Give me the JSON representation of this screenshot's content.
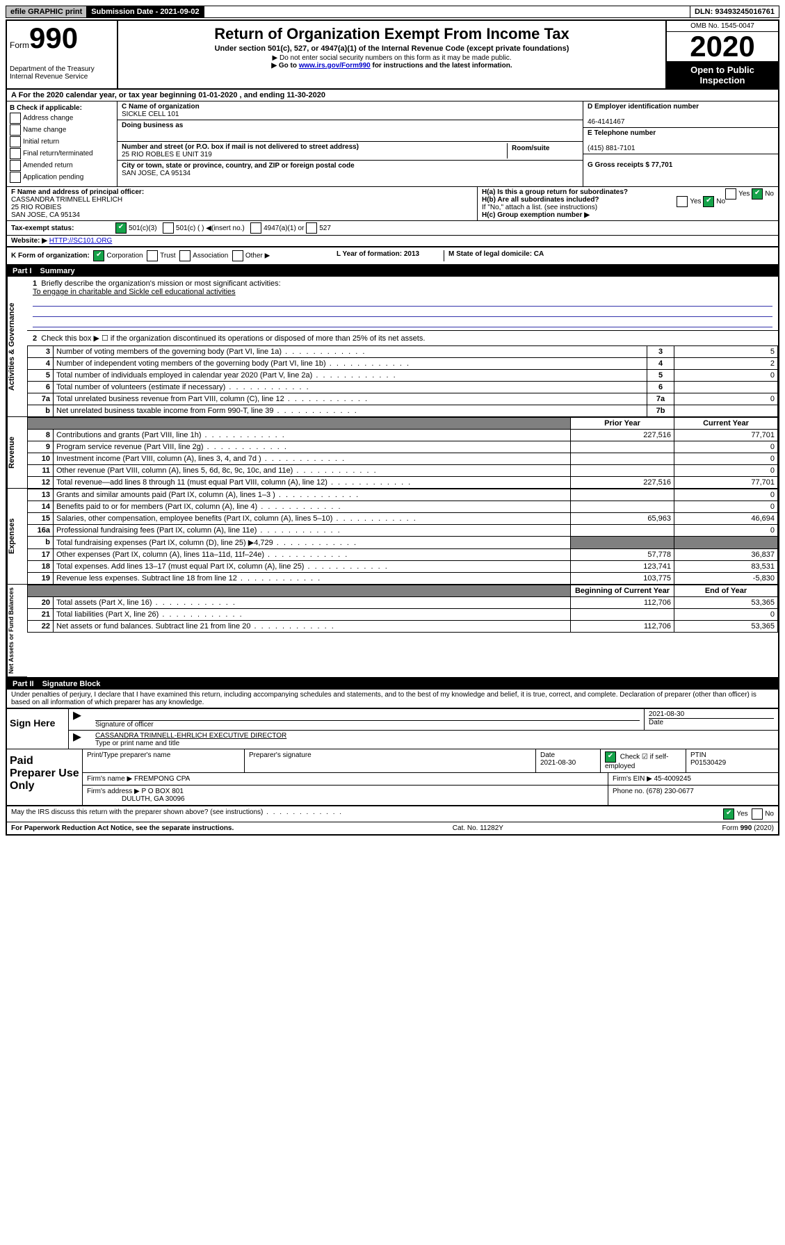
{
  "topbar": {
    "efile": "efile GRAPHIC print",
    "submission_label": "Submission Date - 2021-09-02",
    "dln": "DLN: 93493245016761"
  },
  "header": {
    "form_word": "Form",
    "form_no": "990",
    "dept": "Department of the Treasury\nInternal Revenue Service",
    "title": "Return of Organization Exempt From Income Tax",
    "subtitle": "Under section 501(c), 527, or 4947(a)(1) of the Internal Revenue Code (except private foundations)",
    "note1": "▶ Do not enter social security numbers on this form as it may be made public.",
    "note2_pre": "▶ Go to ",
    "note2_link": "www.irs.gov/Form990",
    "note2_post": " for instructions and the latest information.",
    "omb": "OMB No. 1545-0047",
    "year": "2020",
    "open": "Open to Public Inspection"
  },
  "rowA": "A For the 2020 calendar year, or tax year beginning 01-01-2020     , and ending 11-30-2020",
  "boxB": {
    "title": "B Check if applicable:",
    "items": [
      "Address change",
      "Name change",
      "Initial return",
      "Final return/terminated",
      "Amended return",
      "Application pending"
    ]
  },
  "boxC": {
    "name_lbl": "C Name of organization",
    "name": "SICKLE CELL 101",
    "dba_lbl": "Doing business as",
    "addr_lbl": "Number and street (or P.O. box if mail is not delivered to street address)",
    "room_lbl": "Room/suite",
    "addr": "25 RIO ROBLES E UNIT 319",
    "city_lbl": "City or town, state or province, country, and ZIP or foreign postal code",
    "city": "SAN JOSE, CA  95134"
  },
  "boxD": {
    "lbl": "D Employer identification number",
    "val": "46-4141467"
  },
  "boxE": {
    "lbl": "E Telephone number",
    "val": "(415) 881-7101"
  },
  "boxG": {
    "lbl": "G Gross receipts $ 77,701"
  },
  "boxF": {
    "lbl": "F  Name and address of principal officer:",
    "name": "CASSANDRA TRIMNELL EHRLICH",
    "addr1": "25 RIO ROBIES",
    "addr2": "SAN JOSE, CA  95134"
  },
  "boxH": {
    "ha": "H(a)  Is this a group return for subordinates?",
    "hb": "H(b)  Are all subordinates included?",
    "hb_note": "If \"No,\" attach a list. (see instructions)",
    "hc": "H(c)  Group exemption number ▶",
    "yes": "Yes",
    "no": "No"
  },
  "rowI": {
    "lbl": "Tax-exempt status:",
    "o1": "501(c)(3)",
    "o2": "501(c) (  ) ◀(insert no.)",
    "o3": "4947(a)(1) or",
    "o4": "527"
  },
  "rowJ": {
    "lbl": "Website: ▶",
    "val": "HTTP://SC101.ORG"
  },
  "rowK": {
    "lbl": "K Form of organization:",
    "o1": "Corporation",
    "o2": "Trust",
    "o3": "Association",
    "o4": "Other ▶",
    "L": "L Year of formation: 2013",
    "M": "M State of legal domicile: CA"
  },
  "part1": {
    "hdr": "Part I",
    "title": "Summary",
    "l1_lbl": "Briefly describe the organization's mission or most significant activities:",
    "l1_val": "To engage in charitable and Sickle cell educational activities",
    "l2": "Check this box ▶ ☐  if the organization discontinued its operations or disposed of more than 25% of its net assets.",
    "lines_gov": [
      {
        "n": "3",
        "d": "Number of voting members of the governing body (Part VI, line 1a)",
        "ln": "3",
        "v": "5"
      },
      {
        "n": "4",
        "d": "Number of independent voting members of the governing body (Part VI, line 1b)",
        "ln": "4",
        "v": "2"
      },
      {
        "n": "5",
        "d": "Total number of individuals employed in calendar year 2020 (Part V, line 2a)",
        "ln": "5",
        "v": "0"
      },
      {
        "n": "6",
        "d": "Total number of volunteers (estimate if necessary)",
        "ln": "6",
        "v": ""
      },
      {
        "n": "7a",
        "d": "Total unrelated business revenue from Part VIII, column (C), line 12",
        "ln": "7a",
        "v": "0"
      },
      {
        "n": "b",
        "d": "Net unrelated business taxable income from Form 990-T, line 39",
        "ln": "7b",
        "v": ""
      }
    ],
    "col_hdr_prior": "Prior Year",
    "col_hdr_curr": "Current Year",
    "lines_rev": [
      {
        "n": "8",
        "d": "Contributions and grants (Part VIII, line 1h)",
        "p": "227,516",
        "c": "77,701"
      },
      {
        "n": "9",
        "d": "Program service revenue (Part VIII, line 2g)",
        "p": "",
        "c": "0"
      },
      {
        "n": "10",
        "d": "Investment income (Part VIII, column (A), lines 3, 4, and 7d )",
        "p": "",
        "c": "0"
      },
      {
        "n": "11",
        "d": "Other revenue (Part VIII, column (A), lines 5, 6d, 8c, 9c, 10c, and 11e)",
        "p": "",
        "c": "0"
      },
      {
        "n": "12",
        "d": "Total revenue—add lines 8 through 11 (must equal Part VIII, column (A), line 12)",
        "p": "227,516",
        "c": "77,701"
      }
    ],
    "lines_exp": [
      {
        "n": "13",
        "d": "Grants and similar amounts paid (Part IX, column (A), lines 1–3 )",
        "p": "",
        "c": "0"
      },
      {
        "n": "14",
        "d": "Benefits paid to or for members (Part IX, column (A), line 4)",
        "p": "",
        "c": "0"
      },
      {
        "n": "15",
        "d": "Salaries, other compensation, employee benefits (Part IX, column (A), lines 5–10)",
        "p": "65,963",
        "c": "46,694"
      },
      {
        "n": "16a",
        "d": "Professional fundraising fees (Part IX, column (A), line 11e)",
        "p": "",
        "c": "0"
      },
      {
        "n": "b",
        "d": "Total fundraising expenses (Part IX, column (D), line 25) ▶4,729",
        "p": "GREY",
        "c": "GREY"
      },
      {
        "n": "17",
        "d": "Other expenses (Part IX, column (A), lines 11a–11d, 11f–24e)",
        "p": "57,778",
        "c": "36,837"
      },
      {
        "n": "18",
        "d": "Total expenses. Add lines 13–17 (must equal Part IX, column (A), line 25)",
        "p": "123,741",
        "c": "83,531"
      },
      {
        "n": "19",
        "d": "Revenue less expenses. Subtract line 18 from line 12",
        "p": "103,775",
        "c": "-5,830"
      }
    ],
    "col_hdr_beg": "Beginning of Current Year",
    "col_hdr_end": "End of Year",
    "lines_net": [
      {
        "n": "20",
        "d": "Total assets (Part X, line 16)",
        "p": "112,706",
        "c": "53,365"
      },
      {
        "n": "21",
        "d": "Total liabilities (Part X, line 26)",
        "p": "",
        "c": "0"
      },
      {
        "n": "22",
        "d": "Net assets or fund balances. Subtract line 21 from line 20",
        "p": "112,706",
        "c": "53,365"
      }
    ],
    "vlabels": {
      "gov": "Activities & Governance",
      "rev": "Revenue",
      "exp": "Expenses",
      "net": "Net Assets or Fund Balances"
    }
  },
  "part2": {
    "hdr": "Part II",
    "title": "Signature Block",
    "perjury": "Under penalties of perjury, I declare that I have examined this return, including accompanying schedules and statements, and to the best of my knowledge and belief, it is true, correct, and complete. Declaration of preparer (other than officer) is based on all information of which preparer has any knowledge.",
    "sign_here": "Sign Here",
    "sig_officer": "Signature of officer",
    "date1": "2021-08-30",
    "date_lbl": "Date",
    "typed": "CASSANDRA TRIMNELL-EHRLICH  EXECUTIVE DIRECTOR",
    "typed_lbl": "Type or print name and title",
    "paid": "Paid Preparer Use Only",
    "prep_name_lbl": "Print/Type preparer's name",
    "prep_sig_lbl": "Preparer's signature",
    "prep_date": "2021-08-30",
    "self_emp": "Check ☑ if self-employed",
    "ptin_lbl": "PTIN",
    "ptin": "P01530429",
    "firm_name_lbl": "Firm's name    ▶",
    "firm_name": "FREMPONG CPA",
    "firm_ein_lbl": "Firm's EIN ▶",
    "firm_ein": "45-4009245",
    "firm_addr_lbl": "Firm's address ▶",
    "firm_addr": "P O BOX 801",
    "firm_city": "DULUTH, GA  30096",
    "phone_lbl": "Phone no.",
    "phone": "(678) 230-0677",
    "discuss": "May the IRS discuss this return with the preparer shown above? (see instructions)",
    "yes": "Yes",
    "no": "No"
  },
  "footer": {
    "pra": "For Paperwork Reduction Act Notice, see the separate instructions.",
    "cat": "Cat. No. 11282Y",
    "form": "Form 990 (2020)"
  }
}
